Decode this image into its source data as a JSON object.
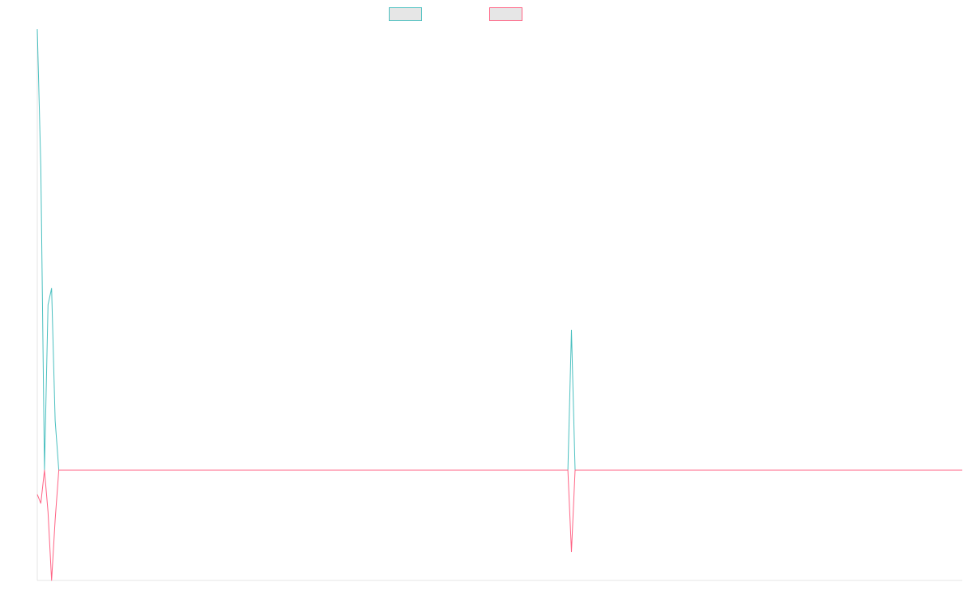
{
  "chart_data": {
    "type": "line",
    "title": "",
    "xlabel": "",
    "ylabel": "",
    "grid": false,
    "legend_position": "top-center",
    "x_count": 259,
    "ylim": [
      -100,
      400
    ],
    "series": [
      {
        "color": "#4bc0c0",
        "fill": "#e6e6e6",
        "points": [
          [
            0,
            400
          ],
          [
            1,
            275
          ],
          [
            2,
            0
          ],
          [
            3,
            150
          ],
          [
            4,
            165
          ],
          [
            5,
            45
          ],
          [
            6,
            0
          ],
          [
            7,
            0
          ],
          [
            8,
            0
          ],
          [
            148,
            0
          ],
          [
            149,
            127
          ],
          [
            150,
            0
          ],
          [
            258,
            0
          ]
        ]
      },
      {
        "color": "#ff6384",
        "fill": "#e6e6e6",
        "points": [
          [
            0,
            -22
          ],
          [
            1,
            -30
          ],
          [
            2,
            0
          ],
          [
            3,
            -38
          ],
          [
            4,
            -100
          ],
          [
            5,
            -45
          ],
          [
            6,
            0
          ],
          [
            7,
            0
          ],
          [
            8,
            0
          ],
          [
            148,
            0
          ],
          [
            149,
            -74
          ],
          [
            150,
            0
          ],
          [
            258,
            0
          ]
        ]
      }
    ]
  }
}
